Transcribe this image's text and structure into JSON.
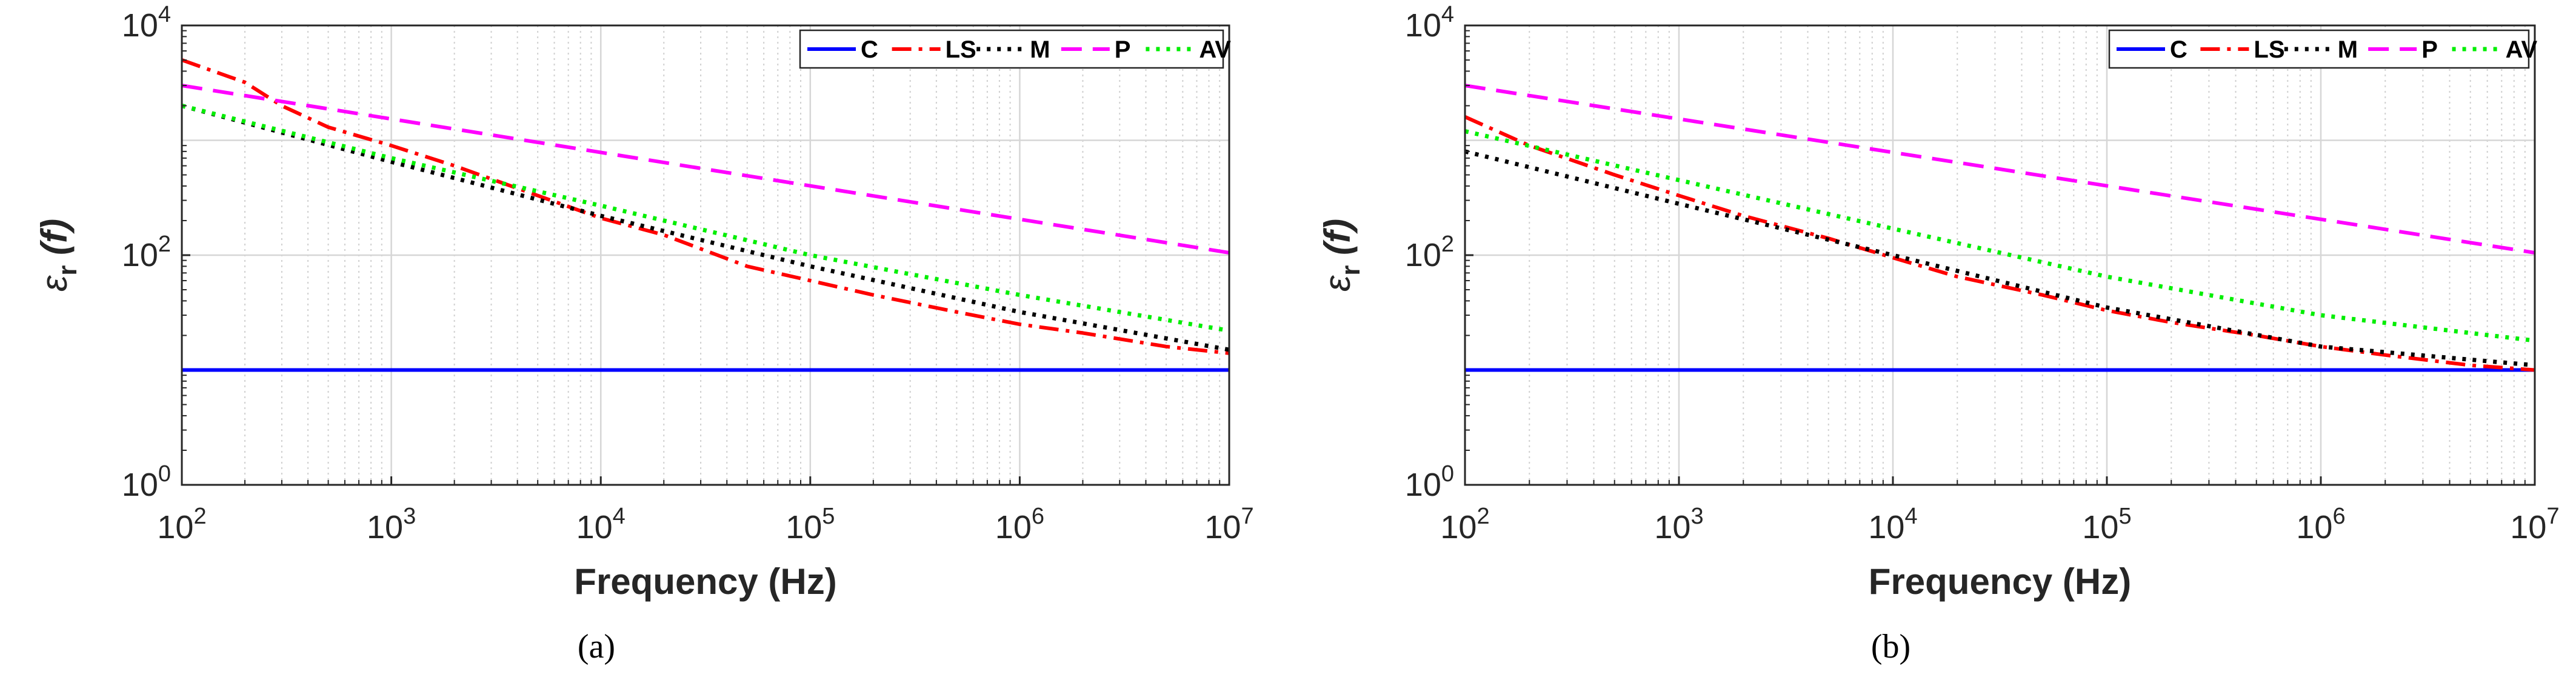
{
  "chart_data": [
    {
      "type": "line",
      "caption": "(a)",
      "xscale": "log",
      "yscale": "log",
      "xlim": [
        100,
        10000000
      ],
      "ylim": [
        1,
        10000
      ],
      "xlabel": "Frequency (Hz)",
      "ylabel": "ε_r(f)",
      "ylabel_main": "ε",
      "ylabel_sub": "r",
      "ylabel_arg": "(f)",
      "xticks": [
        {
          "base": "10",
          "exp": "2"
        },
        {
          "base": "10",
          "exp": "3"
        },
        {
          "base": "10",
          "exp": "4"
        },
        {
          "base": "10",
          "exp": "5"
        },
        {
          "base": "10",
          "exp": "6"
        },
        {
          "base": "10",
          "exp": "7"
        }
      ],
      "yticks": [
        {
          "base": "10",
          "exp": "0"
        },
        {
          "base": "10",
          "exp": "2"
        },
        {
          "base": "10",
          "exp": "4"
        }
      ],
      "grid": true,
      "legend_position": "top-right",
      "series": [
        {
          "name": "C",
          "color": "#0000ff",
          "style": "solid",
          "x": [
            100,
            10000000
          ],
          "y": [
            10,
            10
          ]
        },
        {
          "name": "LS",
          "color": "#ff0000",
          "style": "dashdot",
          "x": [
            100,
            200,
            300,
            500,
            1000,
            2000,
            5000,
            10000,
            20000,
            50000,
            100000,
            200000,
            500000,
            1000000,
            2000000,
            5000000,
            10000000
          ],
          "y": [
            5000,
            3200,
            2000,
            1300,
            900,
            600,
            330,
            210,
            150,
            80,
            60,
            45,
            32,
            25,
            21,
            16,
            14
          ]
        },
        {
          "name": "M",
          "color": "#000000",
          "style": "dotted",
          "x": [
            100,
            1000,
            10000,
            100000,
            1000000,
            10000000
          ],
          "y": [
            2000,
            650,
            220,
            80,
            32,
            15
          ]
        },
        {
          "name": "P",
          "color": "#ff00ff",
          "style": "dashed",
          "x": [
            100,
            10000000
          ],
          "y": [
            3000,
            105
          ]
        },
        {
          "name": "AV",
          "color": "#00ee00",
          "style": "dotted",
          "x": [
            100,
            1000,
            10000,
            100000,
            1000000,
            10000000
          ],
          "y": [
            2000,
            700,
            270,
            100,
            45,
            22
          ]
        }
      ]
    },
    {
      "type": "line",
      "caption": "(b)",
      "xscale": "log",
      "yscale": "log",
      "xlim": [
        100,
        10000000
      ],
      "ylim": [
        1,
        10000
      ],
      "xlabel": "Frequency (Hz)",
      "ylabel": "ε_r(f)",
      "ylabel_main": "ε",
      "ylabel_sub": "r",
      "ylabel_arg": "(f)",
      "xticks": [
        {
          "base": "10",
          "exp": "2"
        },
        {
          "base": "10",
          "exp": "3"
        },
        {
          "base": "10",
          "exp": "4"
        },
        {
          "base": "10",
          "exp": "5"
        },
        {
          "base": "10",
          "exp": "6"
        },
        {
          "base": "10",
          "exp": "7"
        }
      ],
      "yticks": [
        {
          "base": "10",
          "exp": "0"
        },
        {
          "base": "10",
          "exp": "2"
        },
        {
          "base": "10",
          "exp": "4"
        }
      ],
      "grid": true,
      "legend_position": "top-right",
      "series": [
        {
          "name": "C",
          "color": "#0000ff",
          "style": "solid",
          "x": [
            100,
            10000000
          ],
          "y": [
            10,
            10
          ]
        },
        {
          "name": "LS",
          "color": "#ff0000",
          "style": "dashdot",
          "x": [
            100,
            200,
            500,
            1000,
            2000,
            5000,
            10000,
            20000,
            50000,
            100000,
            200000,
            500000,
            1000000,
            2000000,
            5000000,
            10000000
          ],
          "y": [
            1600,
            900,
            500,
            330,
            220,
            140,
            95,
            65,
            45,
            33,
            26,
            20,
            16,
            13.5,
            11,
            10
          ]
        },
        {
          "name": "M",
          "color": "#000000",
          "style": "dotted",
          "x": [
            100,
            1000,
            10000,
            100000,
            1000000,
            10000000
          ],
          "y": [
            800,
            280,
            100,
            35,
            16,
            11
          ]
        },
        {
          "name": "P",
          "color": "#ff00ff",
          "style": "dashed",
          "x": [
            100,
            10000000
          ],
          "y": [
            3000,
            105
          ]
        },
        {
          "name": "AV",
          "color": "#00ee00",
          "style": "dotted",
          "x": [
            100,
            1000,
            10000,
            100000,
            1000000,
            10000000
          ],
          "y": [
            1200,
            450,
            170,
            65,
            30,
            18
          ]
        }
      ]
    }
  ]
}
